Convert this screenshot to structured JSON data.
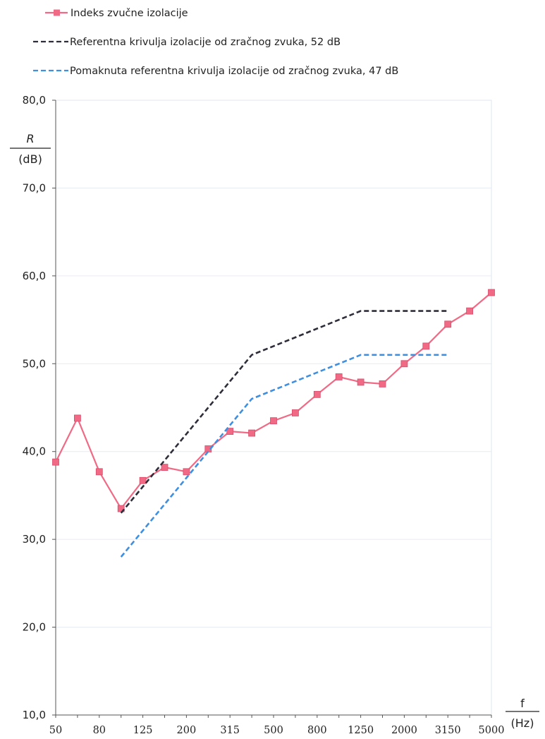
{
  "chart_data": {
    "type": "line",
    "title": "",
    "ylabel": {
      "symbol": "R",
      "unit": "(dB)"
    },
    "xlabel": {
      "symbol": "f",
      "unit": "(Hz)"
    },
    "ylim": [
      10,
      80
    ],
    "yticks": [
      "10,0",
      "20,0",
      "30,0",
      "40,0",
      "50,0",
      "60,0",
      "70,0",
      "80,0"
    ],
    "grid": true,
    "legend_position": "top",
    "categories": [
      "50",
      "63",
      "80",
      "100",
      "125",
      "160",
      "200",
      "250",
      "315",
      "400",
      "500",
      "630",
      "800",
      "1000",
      "1250",
      "1600",
      "2000",
      "2500",
      "3150",
      "4000",
      "5000"
    ],
    "visible_tick_labels": [
      "50",
      "80",
      "125",
      "200",
      "315",
      "500",
      "800",
      "1250",
      "2000",
      "3150",
      "5000"
    ],
    "series": [
      {
        "name": "Indeks zvučne izolacije",
        "color": "#f06a85",
        "style": "solid",
        "marker": "square",
        "values": [
          38.8,
          43.8,
          37.7,
          33.5,
          36.7,
          38.2,
          37.7,
          40.3,
          42.3,
          42.1,
          43.5,
          44.4,
          46.5,
          48.5,
          47.9,
          47.7,
          50.0,
          52.0,
          54.5,
          56.0,
          58.1
        ]
      },
      {
        "name": "Referentna krivulja izolacije od zračnog zvuka, 52 dB",
        "color": "#2e2e3a",
        "style": "dashed",
        "marker": "none",
        "values": [
          null,
          null,
          null,
          33,
          36,
          39,
          42,
          45,
          48,
          51,
          52,
          53,
          54,
          55,
          56,
          56,
          56,
          56,
          56,
          null,
          null
        ]
      },
      {
        "name": "Pomaknuta referentna krivulja izolacije od zračnog zvuka, 47 dB",
        "color": "#3f8fe0",
        "style": "dashed",
        "marker": "none",
        "values": [
          null,
          null,
          null,
          28,
          31,
          34,
          37,
          40,
          43,
          46,
          47,
          48,
          49,
          50,
          51,
          51,
          51,
          51,
          51,
          null,
          null
        ]
      }
    ]
  }
}
